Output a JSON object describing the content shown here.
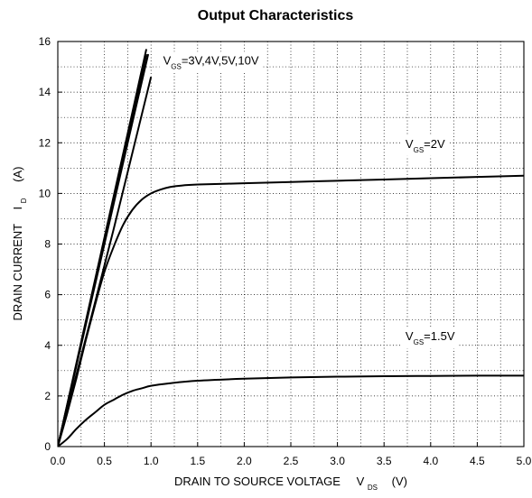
{
  "chart_data": {
    "type": "line",
    "title": "Output Characteristics",
    "xlabel": {
      "main": "DRAIN TO SOURCE VOLTAGE",
      "symbol": "V",
      "subscript": "DS",
      "unit": "(V)"
    },
    "ylabel": {
      "main": "DRAIN CURRENT",
      "symbol": "I",
      "subscript": "D",
      "unit": "(A)"
    },
    "xlim": [
      0,
      5
    ],
    "ylim": [
      0,
      16
    ],
    "x_ticks": [
      "0.0",
      "0.5",
      "1.0",
      "1.5",
      "2.0",
      "2.5",
      "3.0",
      "3.5",
      "4.0",
      "4.5",
      "5.0"
    ],
    "y_ticks": [
      "0",
      "2",
      "4",
      "6",
      "8",
      "10",
      "12",
      "14",
      "16"
    ],
    "grid": true,
    "series": [
      {
        "name": "VGS=10V",
        "x": [
          0,
          0.2,
          0.4,
          0.6,
          0.8,
          0.95
        ],
        "y": [
          0,
          3.3,
          6.6,
          9.9,
          13.2,
          15.7
        ]
      },
      {
        "name": "VGS=5V",
        "x": [
          0,
          0.2,
          0.4,
          0.6,
          0.8,
          0.95
        ],
        "y": [
          0,
          3.25,
          6.5,
          9.75,
          13.0,
          15.5
        ]
      },
      {
        "name": "VGS=4V",
        "x": [
          0,
          0.2,
          0.4,
          0.6,
          0.8,
          0.97
        ],
        "y": [
          0,
          3.2,
          6.4,
          9.6,
          12.8,
          15.5
        ]
      },
      {
        "name": "VGS=3V",
        "x": [
          0,
          0.2,
          0.4,
          0.6,
          0.8,
          1.0
        ],
        "y": [
          0,
          2.85,
          5.7,
          8.6,
          11.6,
          14.6
        ]
      },
      {
        "name": "VGS=2V",
        "x": [
          0,
          0.1,
          0.2,
          0.3,
          0.4,
          0.5,
          0.6,
          0.7,
          0.8,
          0.9,
          1.0,
          1.1,
          1.2,
          1.3,
          1.5,
          2.0,
          2.5,
          3.0,
          3.5,
          4.0,
          4.5,
          5.0
        ],
        "y": [
          0,
          1.3,
          2.7,
          4.2,
          5.6,
          6.9,
          7.9,
          8.75,
          9.35,
          9.75,
          10.0,
          10.15,
          10.25,
          10.3,
          10.35,
          10.4,
          10.45,
          10.5,
          10.55,
          10.6,
          10.65,
          10.7
        ]
      },
      {
        "name": "VGS=1.5V",
        "x": [
          0,
          0.1,
          0.2,
          0.3,
          0.4,
          0.5,
          0.6,
          0.7,
          0.8,
          0.9,
          1.0,
          1.2,
          1.5,
          2.0,
          2.5,
          3.0,
          3.5,
          4.0,
          4.5,
          5.0
        ],
        "y": [
          0,
          0.3,
          0.7,
          1.05,
          1.35,
          1.65,
          1.85,
          2.05,
          2.2,
          2.3,
          2.4,
          2.5,
          2.6,
          2.68,
          2.73,
          2.76,
          2.78,
          2.79,
          2.8,
          2.8
        ]
      }
    ],
    "annotations": [
      {
        "main": "V",
        "sub": "GS",
        "tail": "=3V,4V,5V,10V",
        "x": 1.13,
        "y": 15.1
      },
      {
        "main": "V",
        "sub": "GS",
        "tail": "=2V",
        "x": 3.73,
        "y": 11.8
      },
      {
        "main": "V",
        "sub": "GS",
        "tail": "=1.5V",
        "x": 3.73,
        "y": 4.2
      }
    ]
  }
}
